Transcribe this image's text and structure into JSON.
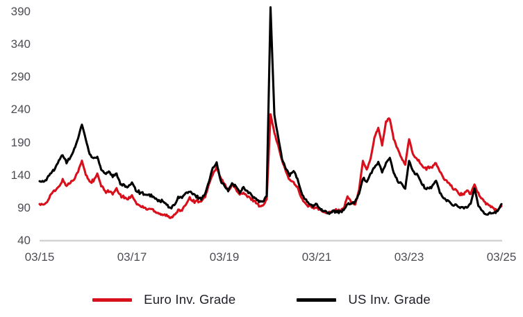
{
  "colors": {
    "euro_line": "#d8101c",
    "us_line": "#000000",
    "axis_line": "#d2d2d2",
    "tick_text": "#4c4c54",
    "legend_text": "#20202a",
    "background": "#ffffff"
  },
  "axes": {
    "y_ticks": [
      390,
      340,
      290,
      240,
      190,
      140,
      90,
      40
    ],
    "x_ticks": [
      "03/15",
      "03/17",
      "03/19",
      "03/21",
      "03/23",
      "03/25"
    ],
    "y_min": 40,
    "y_max": 390
  },
  "legend": [
    {
      "label": "Euro Inv. Grade",
      "color": "#d8101c"
    },
    {
      "label": "US Inv. Grade",
      "color": "#000000"
    }
  ],
  "chart_data": {
    "type": "line",
    "title": "",
    "xlabel": "",
    "ylabel": "",
    "x_tick_labels": [
      "03/15",
      "03/17",
      "03/19",
      "03/21",
      "03/23",
      "03/25"
    ],
    "x_range_years": [
      2015.17,
      2025.17
    ],
    "ylim": [
      40,
      390
    ],
    "grid": false,
    "legend_position": "bottom",
    "x_resolution": "monthly (Mar 2015 - Mar 2025)",
    "series": [
      {
        "name": "Euro Inv. Grade",
        "color": "#d8101c",
        "values": [
          96,
          94,
          100,
          112,
          116,
          122,
          133,
          124,
          129,
          135,
          146,
          162,
          141,
          131,
          131,
          142,
          124,
          116,
          116,
          111,
          119,
          109,
          106,
          104,
          110,
          98,
          93,
          91,
          88,
          89,
          85,
          82,
          80,
          79,
          74,
          80,
          86,
          86,
          96,
          106,
          100,
          101,
          99,
          107,
          126,
          142,
          152,
          136,
          127,
          116,
          126,
          119,
          110,
          113,
          107,
          104,
          100,
          94,
          93,
          103,
          234,
          205,
          185,
          162,
          146,
          132,
          129,
          122,
          106,
          96,
          93,
          90,
          90,
          86,
          85,
          82,
          85,
          86,
          86,
          89,
          108,
          98,
          95,
          118,
          162,
          148,
          165,
          198,
          213,
          186,
          222,
          226,
          196,
          180,
          167,
          156,
          196,
          172,
          166,
          158,
          150,
          151,
          153,
          158,
          146,
          135,
          129,
          123,
          117,
          112,
          111,
          116,
          112,
          125,
          112,
          104,
          97,
          93,
          89,
          86,
          93
        ]
      },
      {
        "name": "US Inv. Grade",
        "color": "#000000",
        "values": [
          131,
          129,
          135,
          145,
          150,
          162,
          171,
          160,
          167,
          180,
          197,
          218,
          195,
          172,
          166,
          168,
          150,
          143,
          146,
          138,
          142,
          128,
          124,
          121,
          130,
          118,
          114,
          112,
          108,
          110,
          104,
          101,
          100,
          95,
          89,
          95,
          105,
          107,
          112,
          115,
          110,
          107,
          104,
          112,
          130,
          152,
          160,
          132,
          124,
          116,
          128,
          123,
          114,
          122,
          115,
          110,
          104,
          100,
          99,
          108,
          397,
          232,
          198,
          165,
          150,
          140,
          147,
          134,
          114,
          103,
          97,
          92,
          96,
          88,
          86,
          82,
          84,
          85,
          84,
          86,
          97,
          95,
          100,
          112,
          136,
          130,
          142,
          152,
          160,
          145,
          158,
          167,
          143,
          132,
          126,
          120,
          163,
          145,
          142,
          130,
          122,
          120,
          123,
          132,
          114,
          104,
          101,
          97,
          94,
          92,
          90,
          92,
          96,
          120,
          94,
          86,
          80,
          83,
          82,
          85,
          96
        ]
      }
    ]
  }
}
